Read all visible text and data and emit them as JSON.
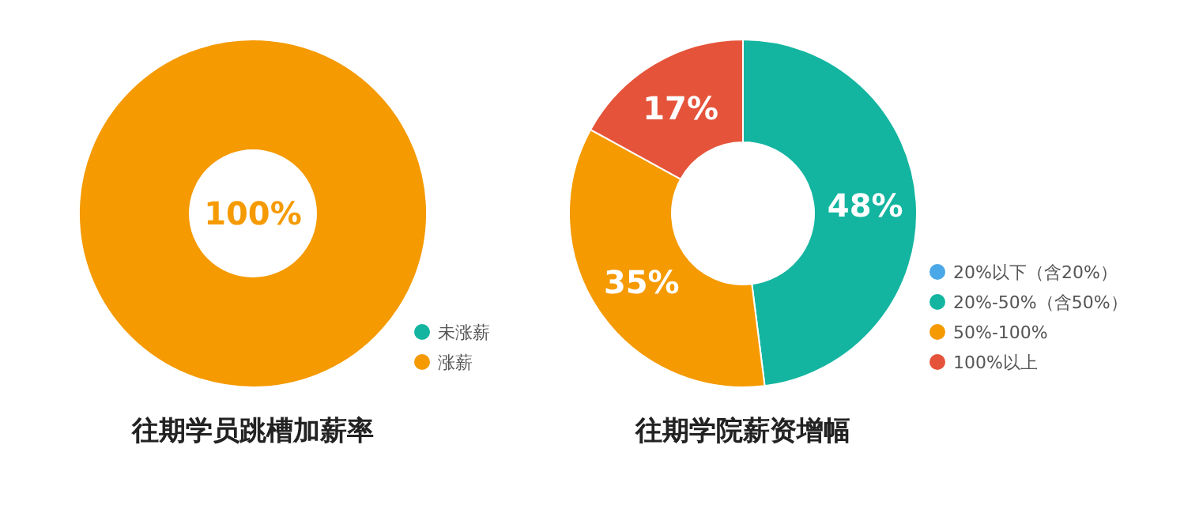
{
  "chart_data": [
    {
      "type": "donut",
      "title": "往期学员跳槽加薪率",
      "categories": [
        "未涨薪",
        "涨薪"
      ],
      "values": [
        0,
        100
      ],
      "colors": [
        "#13b5a0",
        "#f59a00"
      ],
      "value_labels": [
        null,
        "100%"
      ],
      "legend": "bottom right"
    },
    {
      "type": "donut",
      "title": "往期学院薪资增幅",
      "categories": [
        "20%以下（含20%）",
        "20%-50%（含50%）",
        "50%-100%",
        "100%以上"
      ],
      "values": [
        0,
        48,
        35,
        17
      ],
      "colors": [
        "#4aa8e8",
        "#13b5a0",
        "#f59a00",
        "#e5533a"
      ],
      "value_labels": [
        null,
        "48%",
        "35%",
        "17%"
      ],
      "legend": "right"
    }
  ]
}
